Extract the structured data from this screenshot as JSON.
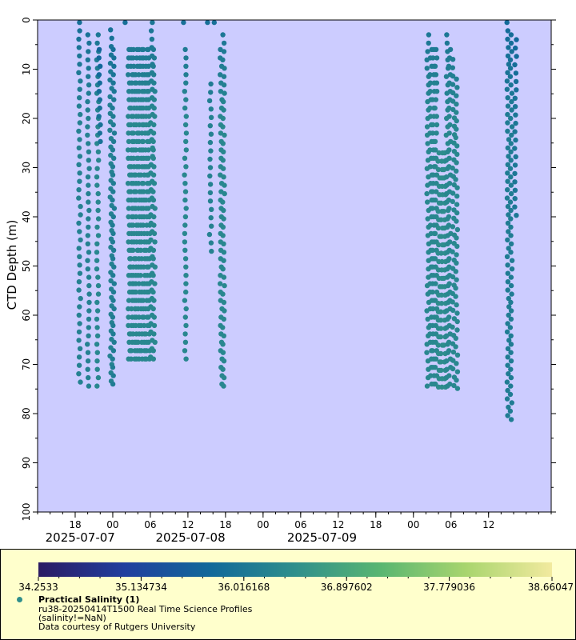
{
  "chart_data": {
    "type": "scatter",
    "title": "",
    "xlabel": "",
    "ylabel": "CTD Depth (m)",
    "ylim": [
      0,
      100
    ],
    "y_inverted": true,
    "x_unit": "hours since 2025-07-06 12:00",
    "xlim": [
      0,
      82
    ],
    "y_ticks": [
      "0",
      "10",
      "20",
      "30",
      "40",
      "50",
      "60",
      "70",
      "80",
      "90",
      "100"
    ],
    "x_ticks": [
      {
        "hour": 6,
        "label": "18"
      },
      {
        "hour": 12,
        "label": "00"
      },
      {
        "hour": 18,
        "label": "06"
      },
      {
        "hour": 24,
        "label": "12"
      },
      {
        "hour": 30,
        "label": "18"
      },
      {
        "hour": 36,
        "label": "00"
      },
      {
        "hour": 42,
        "label": "06"
      },
      {
        "hour": 48,
        "label": "12"
      },
      {
        "hour": 54,
        "label": "18"
      },
      {
        "hour": 60,
        "label": "00"
      },
      {
        "hour": 66,
        "label": "06"
      },
      {
        "hour": 72,
        "label": "12"
      }
    ],
    "date_labels": [
      {
        "hour": 6.8,
        "label": "2025-07-07"
      },
      {
        "hour": 24.4,
        "label": "2025-07-08"
      },
      {
        "hour": 45.4,
        "label": "2025-07-09"
      }
    ],
    "colorbar": {
      "ticks": [
        "34.2533",
        "35.134734",
        "36.016168",
        "36.897602",
        "37.779036",
        "38.66047"
      ],
      "min": 34.2533,
      "max": 38.66047,
      "colors": [
        "#2b1b63",
        "#213e9e",
        "#11689a",
        "#2f8f8c",
        "#59b671",
        "#a9d56e",
        "#f2ea9f"
      ]
    },
    "profiles": [
      {
        "hour": 6.7,
        "zmin": 0.5,
        "zmax": 75,
        "sal": 36.2
      },
      {
        "hour": 8.1,
        "zmin": 3,
        "zmax": 75,
        "sal": 36.2
      },
      {
        "hour": 9.6,
        "zmin": 3,
        "zmax": 75,
        "sal": 36.3
      },
      {
        "hour": 9.95,
        "zmin": 6,
        "zmax": 25,
        "sal": 35.9
      },
      {
        "hour": 11.7,
        "zmin": 2,
        "zmax": 75,
        "sal": 36.2
      },
      {
        "hour": 12.1,
        "zmin": 6,
        "zmax": 75,
        "sal": 36.1
      },
      {
        "hour": 14.0,
        "zmin": 0.5,
        "zmax": 1
      },
      {
        "hour": 14.6,
        "zmin": 6,
        "zmax": 70,
        "sal": 36.3
      },
      {
        "hour": 15.0,
        "zmin": 6,
        "zmax": 70,
        "sal": 36.3
      },
      {
        "hour": 15.4,
        "zmin": 6,
        "zmax": 70,
        "sal": 36.3
      },
      {
        "hour": 15.8,
        "zmin": 6,
        "zmax": 70,
        "sal": 36.3
      },
      {
        "hour": 16.2,
        "zmin": 6,
        "zmax": 70,
        "sal": 36.3
      },
      {
        "hour": 16.6,
        "zmin": 6,
        "zmax": 70,
        "sal": 36.3
      },
      {
        "hour": 17.0,
        "zmin": 6,
        "zmax": 70,
        "sal": 36.3
      },
      {
        "hour": 17.4,
        "zmin": 6,
        "zmax": 70,
        "sal": 36.3
      },
      {
        "hour": 17.8,
        "zmin": 6,
        "zmax": 70,
        "sal": 36.3
      },
      {
        "hour": 18.2,
        "zmin": 0.5,
        "zmax": 70,
        "sal": 36.3
      },
      {
        "hour": 18.6,
        "zmin": 6,
        "zmax": 70,
        "sal": 36.3
      },
      {
        "hour": 23.3,
        "zmin": 0.5,
        "zmax": 1
      },
      {
        "hour": 23.6,
        "zmin": 6,
        "zmax": 70,
        "sal": 36.3
      },
      {
        "hour": 27.2,
        "zmin": 0.5,
        "zmax": 1
      },
      {
        "hour": 27.6,
        "zmin": 13,
        "zmax": 47,
        "sal": 36.2
      },
      {
        "hour": 28.3,
        "zmin": 0.5,
        "zmax": 1
      },
      {
        "hour": 29.3,
        "zmin": 6,
        "zmax": 75,
        "sal": 36.3
      },
      {
        "hour": 29.7,
        "zmin": 3,
        "zmax": 75,
        "sal": 36.3
      },
      {
        "hour": 62.3,
        "zmin": 3,
        "zmax": 75,
        "sal": 36.3
      },
      {
        "hour": 62.8,
        "zmin": 6,
        "zmax": 75,
        "sal": 36.3
      },
      {
        "hour": 63.2,
        "zmin": 6,
        "zmax": 75,
        "sal": 36.3
      },
      {
        "hour": 63.6,
        "zmin": 6,
        "zmax": 75,
        "sal": 36.3
      },
      {
        "hour": 64.1,
        "zmin": 27,
        "zmax": 75,
        "sal": 36.4
      },
      {
        "hour": 64.5,
        "zmin": 27,
        "zmax": 75,
        "sal": 36.4
      },
      {
        "hour": 65.0,
        "zmin": 27,
        "zmax": 75,
        "sal": 36.4
      },
      {
        "hour": 65.4,
        "zmin": 3,
        "zmax": 75,
        "sal": 36.3
      },
      {
        "hour": 65.8,
        "zmin": 6,
        "zmax": 75,
        "sal": 36.3
      },
      {
        "hour": 66.4,
        "zmin": 8,
        "zmax": 75,
        "sal": 36.3
      },
      {
        "hour": 66.9,
        "zmin": 12,
        "zmax": 75,
        "sal": 36.3
      },
      {
        "hour": 75.1,
        "zmin": 0.5,
        "zmax": 82,
        "sal": 36.1
      },
      {
        "hour": 75.6,
        "zmin": 3,
        "zmax": 82,
        "sal": 36.1
      },
      {
        "hour": 76.3,
        "zmin": 4,
        "zmax": 40,
        "sal": 36.0
      }
    ]
  },
  "legend": {
    "title": "Practical Salinity (1)",
    "line1": "ru38-20250414T1500 Real Time Science Profiles",
    "line2": "(salinity!=NaN)",
    "line3": "Data courtesy of Rutgers University",
    "marker_color": "#2f8f8c"
  }
}
